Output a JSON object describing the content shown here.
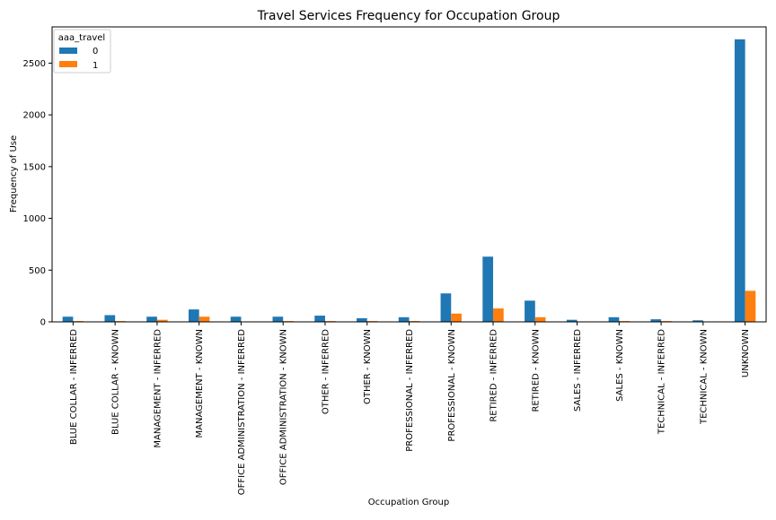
{
  "chart_data": {
    "type": "bar",
    "title": "Travel Services Frequency for Occupation Group",
    "xlabel": "Occupation Group",
    "ylabel": "Frequency of Use",
    "ylim": [
      0,
      2850
    ],
    "yticks": [
      0,
      500,
      1000,
      1500,
      2000,
      2500
    ],
    "grid": false,
    "legend": {
      "title": "aaa_travel",
      "placement": "top-left"
    },
    "categories": [
      "BLUE COLLAR - INFERRED",
      "BLUE COLLAR - KNOWN",
      "MANAGEMENT - INFERRED",
      "MANAGEMENT - KNOWN",
      "OFFICE ADMINISTRATION - INFERRED",
      "OFFICE ADMINISTRATION - KNOWN",
      "OTHER - INFERRED",
      "OTHER - KNOWN",
      "PROFESSIONAL - INFERRED",
      "PROFESSIONAL - KNOWN",
      "RETIRED - INFERRED",
      "RETIRED - KNOWN",
      "SALES - INFERRED",
      "SALES - KNOWN",
      "TECHNICAL - INFERRED",
      "TECHNICAL - KNOWN",
      "UNKNOWN"
    ],
    "series": [
      {
        "name": "0",
        "color": "#1f77b4",
        "values": [
          50,
          65,
          50,
          120,
          50,
          50,
          60,
          35,
          45,
          275,
          630,
          205,
          20,
          45,
          25,
          15,
          2730
        ]
      },
      {
        "name": "1",
        "color": "#ff7f0e",
        "values": [
          8,
          8,
          20,
          50,
          3,
          8,
          8,
          8,
          8,
          80,
          130,
          45,
          3,
          8,
          8,
          3,
          300
        ]
      }
    ]
  }
}
